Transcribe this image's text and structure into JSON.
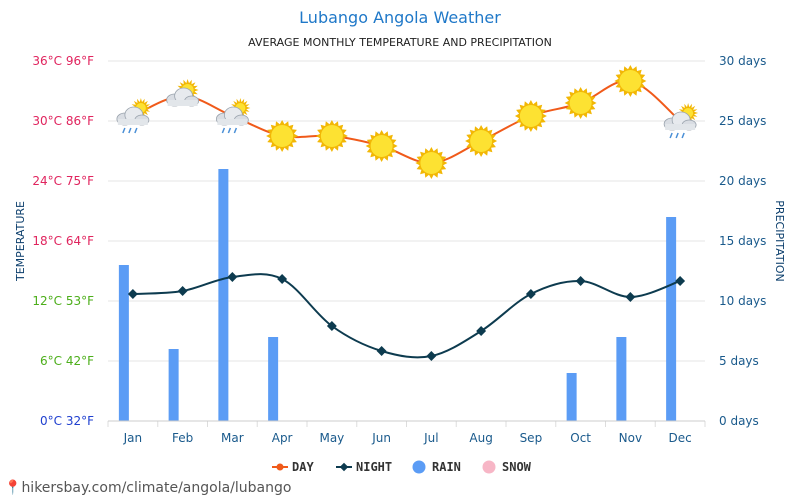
{
  "chart_data": {
    "type": "line",
    "title": "Lubango Angola Weather",
    "subtitle": "AVERAGE MONTHLY TEMPERATURE AND PRECIPITATION",
    "categories": [
      "Jan",
      "Feb",
      "Mar",
      "Apr",
      "May",
      "Jun",
      "Jul",
      "Aug",
      "Sep",
      "Oct",
      "Nov",
      "Dec"
    ],
    "left_axis": {
      "label": "TEMPERATURE",
      "ylim": [
        0,
        36
      ],
      "ticks": [
        {
          "value": 0,
          "text": "0°C 32°F",
          "color": "#1f3fcf"
        },
        {
          "value": 6,
          "text": "6°C 42°F",
          "color": "#4cae1a"
        },
        {
          "value": 12,
          "text": "12°C 53°F",
          "color": "#4cae1a"
        },
        {
          "value": 18,
          "text": "18°C 64°F",
          "color": "#e0245e"
        },
        {
          "value": 24,
          "text": "24°C 75°F",
          "color": "#e0245e"
        },
        {
          "value": 30,
          "text": "30°C 86°F",
          "color": "#e0245e"
        },
        {
          "value": 36,
          "text": "36°C 96°F",
          "color": "#e0245e"
        }
      ]
    },
    "right_axis": {
      "label": "PRECIPITATION",
      "ylim": [
        0,
        30
      ],
      "ticks": [
        {
          "value": 0,
          "text": "0 days"
        },
        {
          "value": 5,
          "text": "5 days"
        },
        {
          "value": 10,
          "text": "10 days"
        },
        {
          "value": 15,
          "text": "15 days"
        },
        {
          "value": 20,
          "text": "20 days"
        },
        {
          "value": 25,
          "text": "25 days"
        },
        {
          "value": 30,
          "text": "30 days"
        }
      ],
      "color": "#1a5a8c"
    },
    "series": [
      {
        "name": "DAY",
        "type": "line",
        "axis": "left",
        "color": "#f05a1a",
        "values": [
          30.5,
          32.5,
          30.5,
          28.5,
          28.5,
          27.5,
          25.8,
          28.0,
          30.5,
          31.8,
          34.0,
          30.0
        ],
        "icons": [
          "rain-cloud",
          "partly-cloudy",
          "rain-cloud",
          "sun",
          "sun",
          "sun",
          "sun",
          "sun",
          "sun",
          "sun",
          "sun",
          "rain-cloud"
        ]
      },
      {
        "name": "NIGHT",
        "type": "line",
        "axis": "left",
        "color": "#0d3b4f",
        "values": [
          12.7,
          13.0,
          14.4,
          14.2,
          9.5,
          7.0,
          6.5,
          9.0,
          12.7,
          14.0,
          12.4,
          14.0
        ]
      },
      {
        "name": "RAIN",
        "type": "bar",
        "axis": "right",
        "color": "#5b9cf5",
        "values": [
          13,
          6,
          21,
          7,
          0,
          0,
          0,
          0,
          0,
          4,
          7,
          17
        ]
      },
      {
        "name": "SNOW",
        "type": "bar",
        "axis": "right",
        "color": "#f7b6c6",
        "values": [
          0,
          0,
          0,
          0,
          0,
          0,
          0,
          0,
          0,
          0,
          0,
          0
        ]
      }
    ],
    "grid": true,
    "legend_position": "bottom-center"
  },
  "watermark": "hikersbay.com/climate/angola/lubango",
  "watermark_icon": "map-pin-icon"
}
